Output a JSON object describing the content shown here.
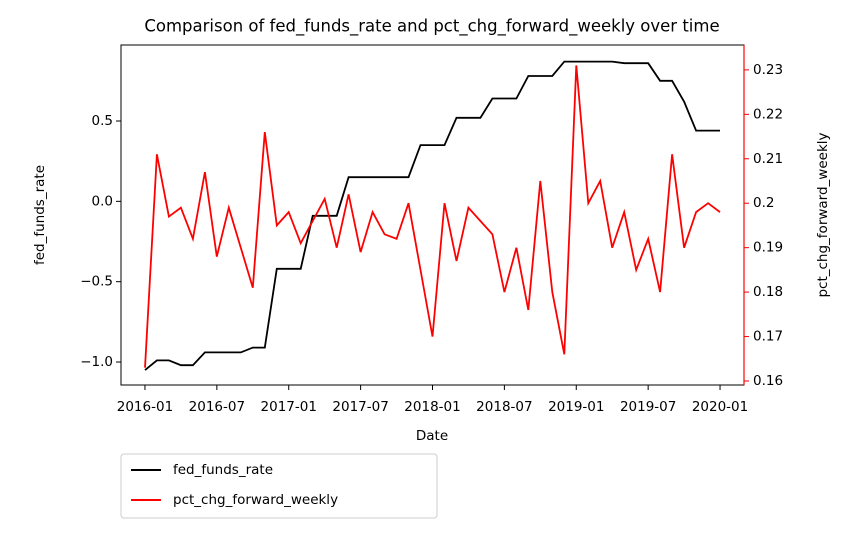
{
  "chart_data": {
    "type": "line",
    "title": "Comparison of fed_funds_rate and pct_chg_forward_weekly over time",
    "x_label": "Date",
    "y_label": "fed_funds_rate",
    "y2_label": "pct_chg_forward_weekly",
    "x": [
      "2016-01",
      "2016-02",
      "2016-03",
      "2016-04",
      "2016-05",
      "2016-06",
      "2016-07",
      "2016-08",
      "2016-09",
      "2016-10",
      "2016-11",
      "2016-12",
      "2017-01",
      "2017-02",
      "2017-03",
      "2017-04",
      "2017-05",
      "2017-06",
      "2017-07",
      "2017-08",
      "2017-09",
      "2017-10",
      "2017-11",
      "2017-12",
      "2018-01",
      "2018-02",
      "2018-03",
      "2018-04",
      "2018-05",
      "2018-06",
      "2018-07",
      "2018-08",
      "2018-09",
      "2018-10",
      "2018-11",
      "2018-12",
      "2019-01",
      "2019-02",
      "2019-03",
      "2019-04",
      "2019-05",
      "2019-06",
      "2019-07",
      "2019-08",
      "2019-09",
      "2019-10",
      "2019-11",
      "2019-12",
      "2020-01"
    ],
    "xlim": [
      "2015-11",
      "2020-03"
    ],
    "xticks": [
      "2016-01",
      "2016-07",
      "2017-01",
      "2017-07",
      "2018-01",
      "2018-07",
      "2019-01",
      "2019-07",
      "2020-01"
    ],
    "ylim": [
      -1.143,
      0.973
    ],
    "yticks": [
      {
        "value": -1.0,
        "label": "−1.0"
      },
      {
        "value": -0.5,
        "label": "−0.5"
      },
      {
        "value": 0.0,
        "label": "0.0"
      },
      0.5
    ],
    "y2lim": [
      0.1591,
      0.2356
    ],
    "y2ticks": [
      0.16,
      0.17,
      0.18,
      0.19,
      0.2,
      0.21,
      0.22,
      0.23
    ],
    "y2_color": "#ff0000",
    "legend": "lower left outside",
    "series": [
      {
        "name": "fed_funds_rate",
        "color": "#000000",
        "values": [
          -1.05,
          -0.99,
          -0.99,
          -1.02,
          -1.02,
          -0.94,
          -0.94,
          -0.94,
          -0.94,
          -0.91,
          -0.91,
          -0.42,
          -0.42,
          -0.42,
          -0.09,
          -0.09,
          -0.09,
          0.15,
          0.15,
          0.15,
          0.15,
          0.15,
          0.15,
          0.35,
          0.35,
          0.35,
          0.52,
          0.52,
          0.52,
          0.64,
          0.64,
          0.64,
          0.78,
          0.78,
          0.78,
          0.87,
          0.87,
          0.87,
          0.87,
          0.87,
          0.86,
          0.86,
          0.86,
          0.75,
          0.75,
          0.62,
          0.44,
          0.44,
          0.44
        ]
      },
      {
        "name": "pct_chg_forward_weekly",
        "color": "#ff0000",
        "axis": "y2",
        "values": [
          0.163,
          0.211,
          0.197,
          0.199,
          0.192,
          0.207,
          0.188,
          0.199,
          0.19,
          0.181,
          0.216,
          0.195,
          0.198,
          0.191,
          0.196,
          0.201,
          0.19,
          0.202,
          0.189,
          0.198,
          0.193,
          0.192,
          0.2,
          0.185,
          0.17,
          0.2,
          0.187,
          0.199,
          0.196,
          0.193,
          0.18,
          0.19,
          0.176,
          0.205,
          0.18,
          0.166,
          0.231,
          0.2,
          0.205,
          0.19,
          0.198,
          0.185,
          0.192,
          0.18,
          0.211,
          0.19,
          0.198,
          0.2,
          0.198
        ]
      }
    ]
  }
}
